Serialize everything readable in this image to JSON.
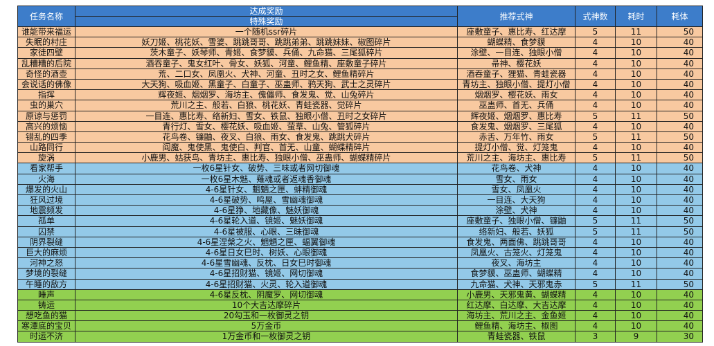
{
  "table": {
    "headers": {
      "task_name": "任务名称",
      "achievement_reward": "达成奖励",
      "special_reward": "特殊奖励",
      "recommended_shikigami": "推荐式神",
      "shikigami_count": "式神数",
      "time_cost": "耗时",
      "stamina_cost": "耗体"
    },
    "colors": {
      "header": "#3D7DCA",
      "header_text": "#FFFFFF",
      "grid_line": "#222222"
    },
    "sections": [
      {
        "color": "#F8C9A0",
        "rows": [
          {
            "name": "谁能带来福运",
            "reward": "一个随机ssr碎片",
            "shikigami": "座敷童子、惠比寿、红达摩",
            "count": 5,
            "time": 11,
            "stamina": 50
          },
          {
            "name": "失眠的村庄",
            "reward": "妖刀姬、桃花妖、雪婆、跳跳哥哥、跳跳弟弟、跳跳妹妹、椒图碎片",
            "shikigami": "蝴蝶精、食梦貘",
            "count": 4,
            "time": 10,
            "stamina": 40
          },
          {
            "name": "家徒四壁",
            "reward": "茨木童子、妖琴师、青姬、食梦貘、兵俑、九命猫、三尾狐碎片",
            "shikigami": "涂壁、一目连、独眼小僧",
            "count": 4,
            "time": 10,
            "stamina": 40
          },
          {
            "name": "乱糟糟的后院",
            "reward": "酒吞童子、鬼女红叶、骨女、妖狐、河童、鲤鱼精、座敷童子碎片",
            "shikigami": "帚神、樱花妖",
            "count": 4,
            "time": 10,
            "stamina": 40
          },
          {
            "name": "奇怪的酒壶",
            "reward": "荒、二口女、凤凰火、犬神、河童、丑时之女、鲤鱼精碎片",
            "shikigami": "酒吞童子、狸猫、青蛙瓷器",
            "count": 4,
            "time": 10,
            "stamina": 40
          },
          {
            "name": "会说话的佛像",
            "reward": "大天狗、吸血姬、黑童子、白童子、巫蛊师、鸦天狗、武士之灵碎片",
            "shikigami": "青坊主、独眼小僧、提灯小僧",
            "count": 4,
            "time": 10,
            "stamina": 40
          },
          {
            "name": "指挥",
            "reward": "辉夜姬、烟烟罗、海坊主、傀儡师、食发鬼、觉、山兔碎片",
            "shikigami": "烟烟罗、樱花妖、雨女",
            "count": 4,
            "time": 10,
            "stamina": 40
          },
          {
            "name": "虫的巢穴",
            "reward": "荒川之主、般若、白狼、桃花妖、青蛙瓷器、觉碎片",
            "shikigami": "巫蛊师、首无、兵俑",
            "count": 4,
            "time": 10,
            "stamina": 40
          },
          {
            "name": "原谅与惩罚",
            "reward": "一目连、惠比寿、络新妇、雪女、铁鼠、独眼小僧、丑时之女碎片",
            "shikigami": "辉夜姬、烟烟罗、惠比寿",
            "count": 5,
            "time": 11,
            "stamina": 50
          },
          {
            "name": "高兴的烦恼",
            "reward": "青行灯、雪女、樱花妖、吸血姬、萤草、山兔、管狐碎片",
            "shikigami": "食发鬼、烟烟罗、三尾狐",
            "count": 4,
            "time": 10,
            "stamina": 40
          },
          {
            "name": "错乱的四季",
            "reward": "花鸟卷、镰鼬、夜叉、白狼、雨女、食发鬼、跳跳犬碎片",
            "shikigami": "赤舌、万年竹、雨女",
            "count": 5,
            "time": 11,
            "stamina": 50
          },
          {
            "name": "山路同行",
            "reward": "阎魔、鬼使黑、鬼使白、判官、首无、山童、蝴蝶精碎片",
            "shikigami": "提灯小僧、觉、灯笼鬼",
            "count": 4,
            "time": 10,
            "stamina": 40
          },
          {
            "name": "旋涡",
            "reward": "小鹿男、姑获鸟、青坊主、惠比寿、独眼小僧、巫蛊师、蝴蝶精碎片",
            "shikigami": "荒川之主、海坊主、惠比寿",
            "count": 5,
            "time": 11,
            "stamina": 50
          }
        ]
      },
      {
        "color": "#93C9E8",
        "rows": [
          {
            "name": "看家帮手",
            "reward": "一枚6星针女、破势、三味或者网切御魂",
            "shikigami": "花鸟卷、犬神",
            "count": 4,
            "time": 10,
            "stamina": 40
          },
          {
            "name": "火海",
            "reward": "一枚6星木魅、薙魂或者返魂香御魂",
            "shikigami": "雪女、雨女",
            "count": 4,
            "time": 10,
            "stamina": 40
          },
          {
            "name": "爆发的火山",
            "reward": "4-6星针女、魍魉之匣、蚌精御魂",
            "shikigami": "雪女、凤凰火",
            "count": 4,
            "time": 10,
            "stamina": 40
          },
          {
            "name": "狂风过境",
            "reward": "4-6星破势、鸣屋、雪幽魂御魂",
            "shikigami": "一目连、大天狗",
            "count": 4,
            "time": 10,
            "stamina": 40
          },
          {
            "name": "地震频发",
            "reward": "4-6星狰、地藏像、魅妖御魂",
            "shikigami": "涂壁、犬神",
            "count": 4,
            "time": 10,
            "stamina": 40
          },
          {
            "name": "孤单",
            "reward": "4-6星轮入道、镜姬、魅妖御魂",
            "shikigami": "座敷童子、独眼小僧、镰鼬",
            "count": 5,
            "time": 11,
            "stamina": 50
          },
          {
            "name": "囚禁",
            "reward": "4-6星被服、心眼、三昧御魂",
            "shikigami": "络新妇、般若、妖狐",
            "count": 5,
            "time": 11,
            "stamina": 50
          },
          {
            "name": "阴界裂缝",
            "reward": "4-6星涅槃之火、魍魉之匣、蝠翼御魂",
            "shikigami": "食发鬼、两面佛、跳跳哥哥",
            "count": 4,
            "time": 10,
            "stamina": 40
          },
          {
            "name": "巨大的麻烦",
            "reward": "4-6星日女巳时、树妖、心眼御魂",
            "shikigami": "凤凰火、古笼火、灯笼鬼",
            "count": 4,
            "time": 10,
            "stamina": 40
          },
          {
            "name": "河神之怒",
            "reward": "4-6星雪幽魂、反枕、日女巳时御魂",
            "shikigami": "夜叉、海坊主",
            "count": 4,
            "time": 10,
            "stamina": 40
          },
          {
            "name": "梦境的裂缝",
            "reward": "4-6星招财猫、镜姬、网切御魂",
            "shikigami": "食梦貘、巫蛊师、蝴蝶精",
            "count": 4,
            "time": 10,
            "stamina": 40
          },
          {
            "name": "午睡的敌方",
            "reward": "4-6星招财猫、火灵、轮入道御魂",
            "shikigami": "九命猫、犬神、天邪鬼赤",
            "count": 5,
            "time": 11,
            "stamina": 50
          }
        ]
      },
      {
        "color": "#92D050",
        "rows": [
          {
            "name": "睡声",
            "reward": "4-6星反枕、阴魔罗、网切御魂",
            "shikigami": "小鹿男、天邪鬼黄、蝴蝶精",
            "count": 4,
            "time": 10,
            "stamina": 40
          },
          {
            "name": "铸运",
            "reward": "10个大吉达摩碎片",
            "shikigami": "红达摩、白达摩、大吉达摩",
            "count": 4,
            "time": 10,
            "stamina": 40
          },
          {
            "name": "想吃鱼的猫",
            "reward": "20勾玉和一枚御灵之钥",
            "shikigami": "海坊主、荒川之主、金鱼姬",
            "count": 4,
            "time": 10,
            "stamina": 40
          },
          {
            "name": "寒潭底的宝贝",
            "reward": "5万金币",
            "shikigami": "鲤鱼精、海坊主、椒图",
            "count": 4,
            "time": 10,
            "stamina": 40
          },
          {
            "name": "时运不济",
            "reward": "1万金币和一枚御灵之钥",
            "shikigami": "青蛙瓷器、铁鼠",
            "count": 3,
            "time": 9,
            "stamina": 30
          }
        ]
      }
    ]
  }
}
